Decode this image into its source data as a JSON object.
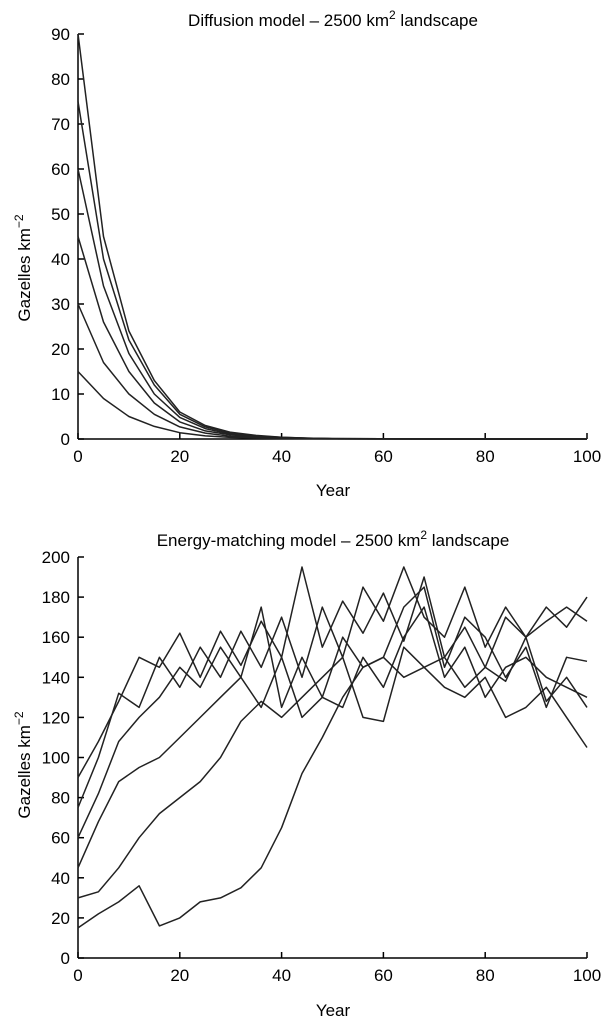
{
  "chart_data": [
    {
      "type": "line",
      "title": "Diffusion model – 2500 km",
      "title_sup": "2",
      "title_suffix": " landscape",
      "xlabel": "Year",
      "ylabel": "Gazelles km",
      "ylabel_sup": "−2",
      "xlim": [
        0,
        100
      ],
      "ylim": [
        0,
        90
      ],
      "xticks": [
        "0",
        "20",
        "40",
        "60",
        "80",
        "100"
      ],
      "yticks": [
        "0",
        "10",
        "20",
        "30",
        "40",
        "50",
        "60",
        "70",
        "80",
        "90"
      ],
      "x": [
        0,
        5,
        10,
        15,
        20,
        25,
        30,
        35,
        40,
        45,
        50,
        60,
        70,
        80,
        90,
        100
      ],
      "series": [
        {
          "values": [
            90,
            45,
            24,
            13,
            6,
            3,
            1.5,
            0.8,
            0.4,
            0.2,
            0.1,
            0.05,
            0.02,
            0.01,
            0.01,
            0
          ]
        },
        {
          "values": [
            75,
            40,
            22,
            12,
            5.5,
            2.7,
            1.3,
            0.7,
            0.35,
            0.2,
            0.1,
            0.05,
            0.02,
            0.01,
            0.01,
            0
          ]
        },
        {
          "values": [
            60,
            34,
            19,
            10,
            4.8,
            2.3,
            1.1,
            0.6,
            0.3,
            0.15,
            0.08,
            0.04,
            0.02,
            0.01,
            0.01,
            0
          ]
        },
        {
          "values": [
            45,
            26,
            15,
            8,
            3.8,
            1.8,
            0.9,
            0.5,
            0.25,
            0.12,
            0.06,
            0.03,
            0.01,
            0.01,
            0,
            0
          ]
        },
        {
          "values": [
            30,
            17,
            10,
            5.5,
            2.7,
            1.3,
            0.6,
            0.3,
            0.15,
            0.08,
            0.04,
            0.02,
            0.01,
            0,
            0,
            0
          ]
        },
        {
          "values": [
            15,
            9,
            5,
            2.8,
            1.4,
            0.7,
            0.35,
            0.2,
            0.1,
            0.05,
            0.03,
            0.01,
            0,
            0,
            0,
            0
          ]
        }
      ]
    },
    {
      "type": "line",
      "title": "Energy-matching model – 2500 km",
      "title_sup": "2",
      "title_suffix": " landscape",
      "xlabel": "Year",
      "ylabel": "Gazelles km",
      "ylabel_sup": "−2",
      "xlim": [
        0,
        100
      ],
      "ylim": [
        0,
        200
      ],
      "xticks": [
        "0",
        "20",
        "40",
        "60",
        "80",
        "100"
      ],
      "yticks": [
        "0",
        "20",
        "40",
        "60",
        "80",
        "100",
        "120",
        "140",
        "160",
        "180",
        "200"
      ],
      "x": [
        0,
        4,
        8,
        12,
        16,
        20,
        24,
        28,
        32,
        36,
        40,
        44,
        48,
        52,
        56,
        60,
        64,
        68,
        72,
        76,
        80,
        84,
        88,
        92,
        96,
        100
      ],
      "series": [
        {
          "values": [
            90,
            108,
            128,
            150,
            145,
            162,
            140,
            163,
            146,
            168,
            150,
            195,
            155,
            178,
            162,
            182,
            158,
            190,
            150,
            165,
            145,
            170,
            160,
            175,
            165,
            180
          ]
        },
        {
          "values": [
            75,
            100,
            132,
            125,
            150,
            135,
            155,
            140,
            163,
            145,
            170,
            140,
            175,
            150,
            185,
            168,
            195,
            170,
            160,
            185,
            155,
            175,
            160,
            168,
            175,
            168
          ]
        },
        {
          "values": [
            60,
            82,
            108,
            120,
            130,
            145,
            135,
            155,
            140,
            175,
            125,
            150,
            130,
            160,
            145,
            150,
            175,
            185,
            145,
            170,
            160,
            140,
            155,
            125,
            150,
            148
          ]
        },
        {
          "values": [
            45,
            68,
            88,
            95,
            100,
            110,
            120,
            130,
            140,
            125,
            150,
            120,
            130,
            125,
            150,
            135,
            160,
            175,
            140,
            155,
            130,
            145,
            150,
            140,
            135,
            130
          ]
        },
        {
          "values": [
            30,
            33,
            45,
            60,
            72,
            80,
            88,
            100,
            118,
            128,
            120,
            130,
            140,
            150,
            120,
            118,
            155,
            145,
            150,
            135,
            145,
            138,
            160,
            128,
            140,
            125
          ]
        },
        {
          "values": [
            15,
            22,
            28,
            36,
            16,
            20,
            28,
            30,
            35,
            45,
            65,
            92,
            110,
            130,
            145,
            150,
            140,
            145,
            135,
            130,
            140,
            120,
            125,
            135,
            120,
            105
          ]
        }
      ]
    }
  ]
}
